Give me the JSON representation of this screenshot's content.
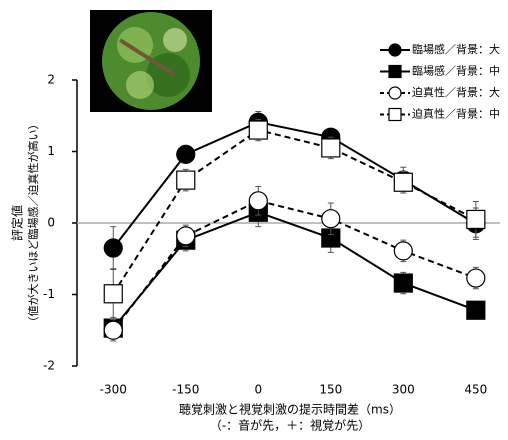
{
  "chart_data": {
    "type": "line",
    "y_label": [
      "評定値",
      "（値が大きいほど臨場感／迫真性が高い）"
    ],
    "x_label": [
      "聴覚刺激と視覚刺激の提示時間差（ms）",
      "（-：音が先，＋：視覚が先）"
    ],
    "x": [
      -300,
      -150,
      0,
      150,
      300,
      450
    ],
    "xlim": [
      -375,
      500
    ],
    "xticks": [
      -300,
      -150,
      0,
      150,
      300,
      450
    ],
    "ylim": [
      -2,
      2
    ],
    "yticks": [
      -2,
      -1,
      0,
      1,
      2
    ],
    "zero_line": true,
    "legend": "upper right",
    "series": [
      {
        "name": "臨場感／背景：大",
        "color": "#000000",
        "marker": "circle",
        "filled": true,
        "dashed": false,
        "values": [
          -0.35,
          0.96,
          1.41,
          1.2,
          0.6,
          -0.01
        ],
        "errors": [
          0.3,
          0.12,
          0.15,
          0.12,
          0.18,
          0.22
        ]
      },
      {
        "name": "臨場感／背景：中",
        "color": "#000000",
        "marker": "square",
        "filled": true,
        "dashed": false,
        "values": [
          -1.47,
          -0.24,
          0.15,
          -0.21,
          -0.84,
          -1.22
        ],
        "errors": [
          0.15,
          0.15,
          0.2,
          0.2,
          0.15,
          0.1
        ]
      },
      {
        "name": "迫真性／背景：大",
        "color": "#000000",
        "marker": "circle",
        "filled": false,
        "dashed": true,
        "values": [
          -1.5,
          -0.18,
          0.31,
          0.06,
          -0.39,
          -0.77
        ],
        "errors": [
          0.15,
          0.15,
          0.2,
          0.22,
          0.15,
          0.15
        ]
      },
      {
        "name": "迫真性／背景：中",
        "color": "#000000",
        "marker": "square",
        "filled": false,
        "dashed": true,
        "values": [
          -0.99,
          0.6,
          1.3,
          1.05,
          0.57,
          0.05
        ],
        "errors": [
          0.35,
          0.15,
          0.15,
          0.15,
          0.15,
          0.25
        ]
      }
    ]
  }
}
